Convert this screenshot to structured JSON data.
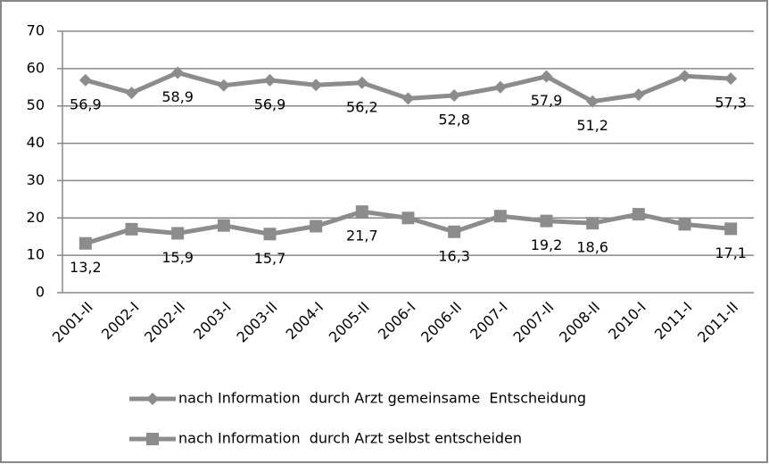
{
  "chart_data": {
    "type": "line",
    "categories": [
      "2001-II",
      "2002-I",
      "2002-II",
      "2003-I",
      "2003-II",
      "2004-I",
      "2005-II",
      "2006-I",
      "2006-II",
      "2007-I",
      "2007-II",
      "2008-II",
      "2010-I",
      "2011-I",
      "2011-II"
    ],
    "series": [
      {
        "name": "nach Information  durch Arzt gemeinsame  Entscheidung",
        "color": "#8c8c8c",
        "marker": "diamond",
        "values": [
          56.9,
          53.5,
          58.9,
          55.5,
          56.9,
          55.6,
          56.2,
          52,
          52.8,
          55,
          57.9,
          51.2,
          53,
          58,
          57.3
        ],
        "value_labels": [
          "56,9",
          null,
          "58,9",
          null,
          "56,9",
          null,
          "56,2",
          null,
          "52,8",
          null,
          "57,9",
          "51,2",
          null,
          null,
          "57,3"
        ]
      },
      {
        "name": "nach Information  durch Arzt selbst entscheiden",
        "color": "#8c8c8c",
        "marker": "square",
        "values": [
          13.2,
          17,
          15.9,
          18,
          15.7,
          17.8,
          21.7,
          20,
          16.3,
          20.5,
          19.2,
          18.6,
          21,
          18.3,
          17.1
        ],
        "value_labels": [
          "13,2",
          null,
          "15,9",
          null,
          "15,7",
          null,
          "21,7",
          null,
          "16,3",
          null,
          "19,2",
          "18,6",
          null,
          null,
          "17,1"
        ]
      }
    ],
    "ylim": [
      0,
      70
    ],
    "yticks": [
      0,
      10,
      20,
      30,
      40,
      50,
      60,
      70
    ],
    "grid": true,
    "legend": "bottom"
  }
}
